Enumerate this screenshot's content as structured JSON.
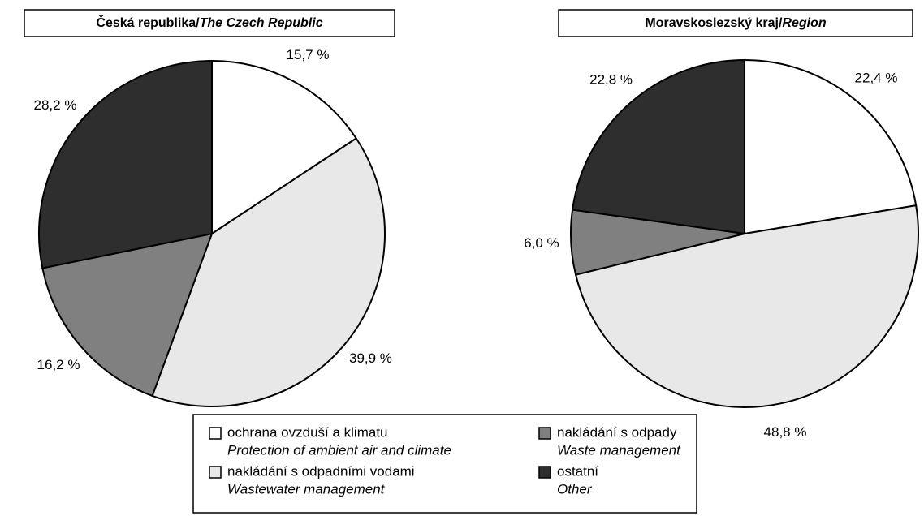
{
  "chart_data": [
    {
      "type": "pie",
      "title": "Česká republika/",
      "title_en": "The Czech Republic",
      "categories": [
        "ochrana ovzduší a klimatu",
        "nakládání s odpadními vodami",
        "nakládání s odpady",
        "ostatní"
      ],
      "categories_en": [
        "Protection of ambient air and climate",
        "Wastewater management",
        "Waste management",
        "Other"
      ],
      "colors": [
        "#ffffff",
        "#e8e8e8",
        "#808080",
        "#2e2e2e"
      ],
      "values": [
        15.7,
        39.9,
        16.2,
        28.2
      ],
      "value_labels": [
        "15,7 %",
        "39,9 %",
        "16,2 %",
        "28,2 %"
      ]
    },
    {
      "type": "pie",
      "title": "Moravskoslezský kraj/",
      "title_en": "Region",
      "categories": [
        "ochrana ovzduší a klimatu",
        "nakládání s odpadními vodami",
        "nakládání s odpady",
        "ostatní"
      ],
      "categories_en": [
        "Protection of ambient air and climate",
        "Wastewater management",
        "Waste management",
        "Other"
      ],
      "colors": [
        "#ffffff",
        "#e8e8e8",
        "#808080",
        "#2e2e2e"
      ],
      "values": [
        22.4,
        48.8,
        6.0,
        22.8
      ],
      "value_labels": [
        "22,4 %",
        "48,8 %",
        "6,0 %",
        "22,8 %"
      ]
    }
  ]
}
